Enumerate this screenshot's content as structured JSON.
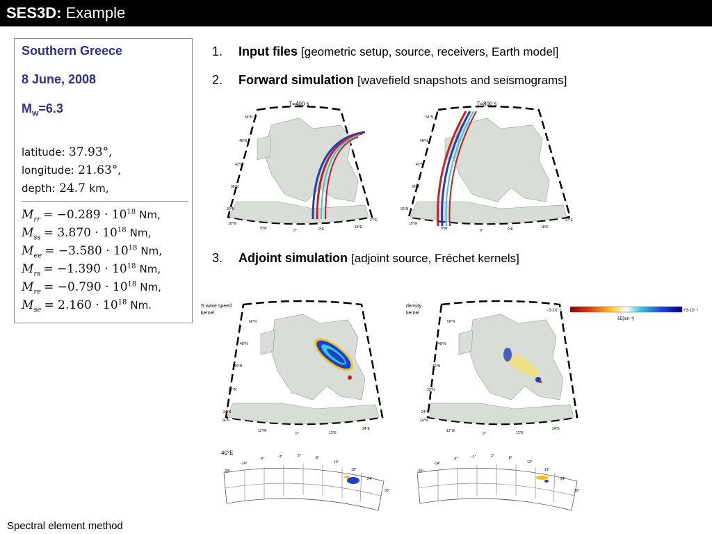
{
  "slide": {
    "title_bold": "SES3D:",
    "title_rest": "Example",
    "footer": "Spectral element method"
  },
  "event": {
    "region": "Southern Greece",
    "date": "8 June, 2008",
    "magnitude_label_main": "M",
    "magnitude_label_sub": "w",
    "magnitude_value": "=6.3",
    "latitude_label": "latitude:",
    "latitude_value": "37.93°,",
    "longitude_label": "longitude:",
    "longitude_value": "21.63°,",
    "depth_label": "depth:",
    "depth_value": "24.7",
    "depth_unit": "km,",
    "moment_tensor": [
      {
        "sym": "M",
        "sub": "rr",
        "coef": "= −0.289 · 10",
        "exp": "18",
        "unit": "Nm,"
      },
      {
        "sym": "M",
        "sub": "ss",
        "coef": "= 3.870 · 10",
        "exp": "18",
        "unit": "Nm,"
      },
      {
        "sym": "M",
        "sub": "ee",
        "coef": "= −3.580 · 10",
        "exp": "18",
        "unit": "Nm,"
      },
      {
        "sym": "M",
        "sub": "rs",
        "coef": "= −1.390 · 10",
        "exp": "18",
        "unit": "Nm,"
      },
      {
        "sym": "M",
        "sub": "re",
        "coef": "= −0.790 · 10",
        "exp": "18",
        "unit": "Nm,"
      },
      {
        "sym": "M",
        "sub": "se",
        "coef": "= 2.160 · 10",
        "exp": "18",
        "unit": "Nm."
      }
    ]
  },
  "steps": [
    {
      "num": "1.",
      "bold": "Input files",
      "bracket": "[geometric setup, source, receivers, Earth model]"
    },
    {
      "num": "2.",
      "bold": "Forward simulation",
      "bracket": "[wavefield snapshots and seismograms]"
    },
    {
      "num": "3.",
      "bold": "Adjoint simulation",
      "bracket": "[adjoint source, Fréchet kernels]"
    }
  ],
  "forward_maps": [
    {
      "title": "T=400 s",
      "lat_labels": [
        "54°N",
        "48°N",
        "42°N",
        "36°N",
        "30°N"
      ],
      "lon_labels": [
        "18°W",
        "9°W",
        "0°",
        "9°E",
        "18°E",
        "27°E"
      ]
    },
    {
      "title": "T=800 s",
      "lat_labels": [
        "54°N",
        "48°N",
        "42°N",
        "36°N",
        "30°N"
      ],
      "lon_labels": [
        "18°W",
        "9°W",
        "0°",
        "9°E",
        "18°E",
        "27°E"
      ]
    }
  ],
  "kernel_maps": [
    {
      "title_line1": "S wave speed",
      "title_line2": "kernel",
      "lat_labels": [
        "56°N",
        "48°N",
        "40°N",
        "32°N",
        "24°N",
        "24°N"
      ],
      "lon_labels": [
        "12°W",
        "0°",
        "12°E",
        "24°E"
      ]
    },
    {
      "title_line1": "density",
      "title_line2": "kernel",
      "lat_labels": [
        "56°N",
        "48°N",
        "40°N",
        "32°N",
        "24°N",
        "24°N"
      ],
      "lon_labels": [
        "12°W",
        "0°",
        "12°E",
        "24°E"
      ]
    }
  ],
  "colorbar": {
    "min_label": "−3·10⁻⁹",
    "max_label": "+3·10⁻⁹",
    "unit_label": "δE[km⁻³]",
    "colors": [
      "#8b0000",
      "#e04010",
      "#ffd030",
      "#ffffff",
      "#40d0e0",
      "#2040d0",
      "#000080"
    ]
  },
  "sections": [
    {
      "corner_label": "40°E",
      "top_labels": [
        "-14°",
        "-9°",
        "-3°",
        "2°",
        "8°",
        "13°",
        "19°",
        "24°"
      ],
      "side_labels": [
        "-20°",
        "30°"
      ]
    },
    {
      "corner_label": "",
      "top_labels": [
        "-14°",
        "-9°",
        "-3°",
        "2°",
        "8°",
        "13°",
        "19°",
        "24°"
      ],
      "side_labels": [
        "-20°",
        "30°"
      ]
    }
  ],
  "colors": {
    "accent_blue": "#2e3092",
    "land": "#d8ddd8",
    "wave_red": "#c8201c",
    "wave_blue": "#1f3fc0",
    "wave_cyan": "#30c8e0",
    "wave_yellow": "#f0c020"
  }
}
